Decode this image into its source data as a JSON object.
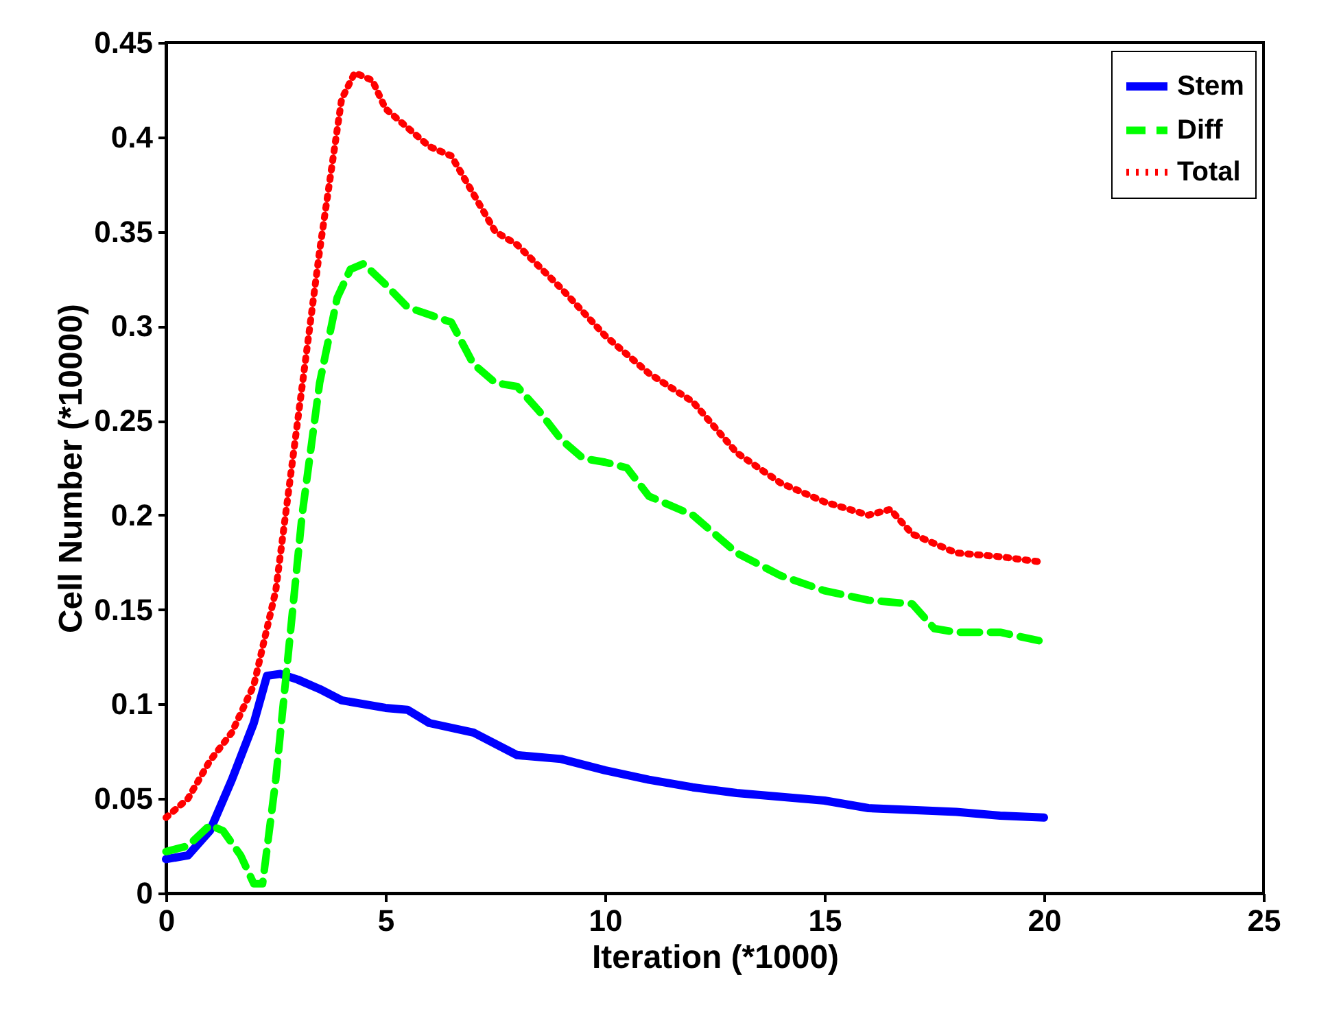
{
  "chart_data": {
    "type": "line",
    "xlabel": "Iteration (*1000)",
    "ylabel": "Cell Number (*10000)",
    "xlim": [
      0,
      25
    ],
    "xticks": [
      0,
      5,
      10,
      15,
      20,
      25
    ],
    "ylim": [
      0,
      0.45
    ],
    "yticks": [
      0,
      0.05,
      0.1,
      0.15,
      0.2,
      0.25,
      0.3,
      0.35,
      0.4,
      0.45
    ],
    "grid": false,
    "legend": "top right",
    "series": [
      {
        "name": "Stem",
        "color": "#0000ff",
        "line_style": "solid",
        "x": [
          0,
          0.5,
          1,
          1.5,
          2,
          2.3,
          2.6,
          3,
          3.5,
          4,
          5,
          5.5,
          6,
          7,
          8,
          9,
          10,
          11,
          12,
          13,
          14,
          15,
          16,
          17,
          18,
          19,
          20
        ],
        "values": [
          0.018,
          0.02,
          0.033,
          0.06,
          0.09,
          0.115,
          0.116,
          0.113,
          0.108,
          0.102,
          0.098,
          0.097,
          0.09,
          0.085,
          0.073,
          0.071,
          0.065,
          0.06,
          0.056,
          0.053,
          0.051,
          0.049,
          0.045,
          0.044,
          0.043,
          0.041,
          0.04
        ]
      },
      {
        "name": "Diff",
        "color": "#00ff00",
        "line_style": "dashed",
        "x": [
          0,
          0.5,
          1,
          1.3,
          1.7,
          2,
          2.2,
          2.5,
          2.8,
          3.1,
          3.5,
          3.9,
          4.2,
          4.5,
          5,
          5.5,
          6,
          6.5,
          7,
          7.5,
          8,
          8.5,
          9,
          9.5,
          10,
          10.5,
          11,
          12,
          13,
          14,
          15,
          16,
          17,
          17.5,
          18,
          19,
          20
        ],
        "values": [
          0.022,
          0.025,
          0.036,
          0.033,
          0.02,
          0.005,
          0.005,
          0.06,
          0.13,
          0.2,
          0.27,
          0.315,
          0.33,
          0.333,
          0.322,
          0.31,
          0.306,
          0.302,
          0.28,
          0.27,
          0.268,
          0.255,
          0.24,
          0.23,
          0.228,
          0.225,
          0.21,
          0.2,
          0.18,
          0.168,
          0.16,
          0.155,
          0.153,
          0.14,
          0.138,
          0.138,
          0.133
        ]
      },
      {
        "name": "Total",
        "color": "#ff0000",
        "line_style": "dotted",
        "x": [
          0,
          0.5,
          1,
          1.5,
          2,
          2.5,
          3,
          3.5,
          4,
          4.3,
          4.7,
          5,
          5.5,
          6,
          6.5,
          7,
          7.5,
          8,
          9,
          10,
          11,
          12,
          13,
          14,
          15,
          16,
          16.5,
          17,
          18,
          19,
          20
        ],
        "values": [
          0.04,
          0.05,
          0.07,
          0.085,
          0.11,
          0.16,
          0.25,
          0.34,
          0.42,
          0.434,
          0.43,
          0.415,
          0.405,
          0.395,
          0.39,
          0.37,
          0.35,
          0.343,
          0.32,
          0.295,
          0.275,
          0.26,
          0.233,
          0.217,
          0.207,
          0.2,
          0.203,
          0.19,
          0.18,
          0.178,
          0.175
        ]
      }
    ]
  }
}
